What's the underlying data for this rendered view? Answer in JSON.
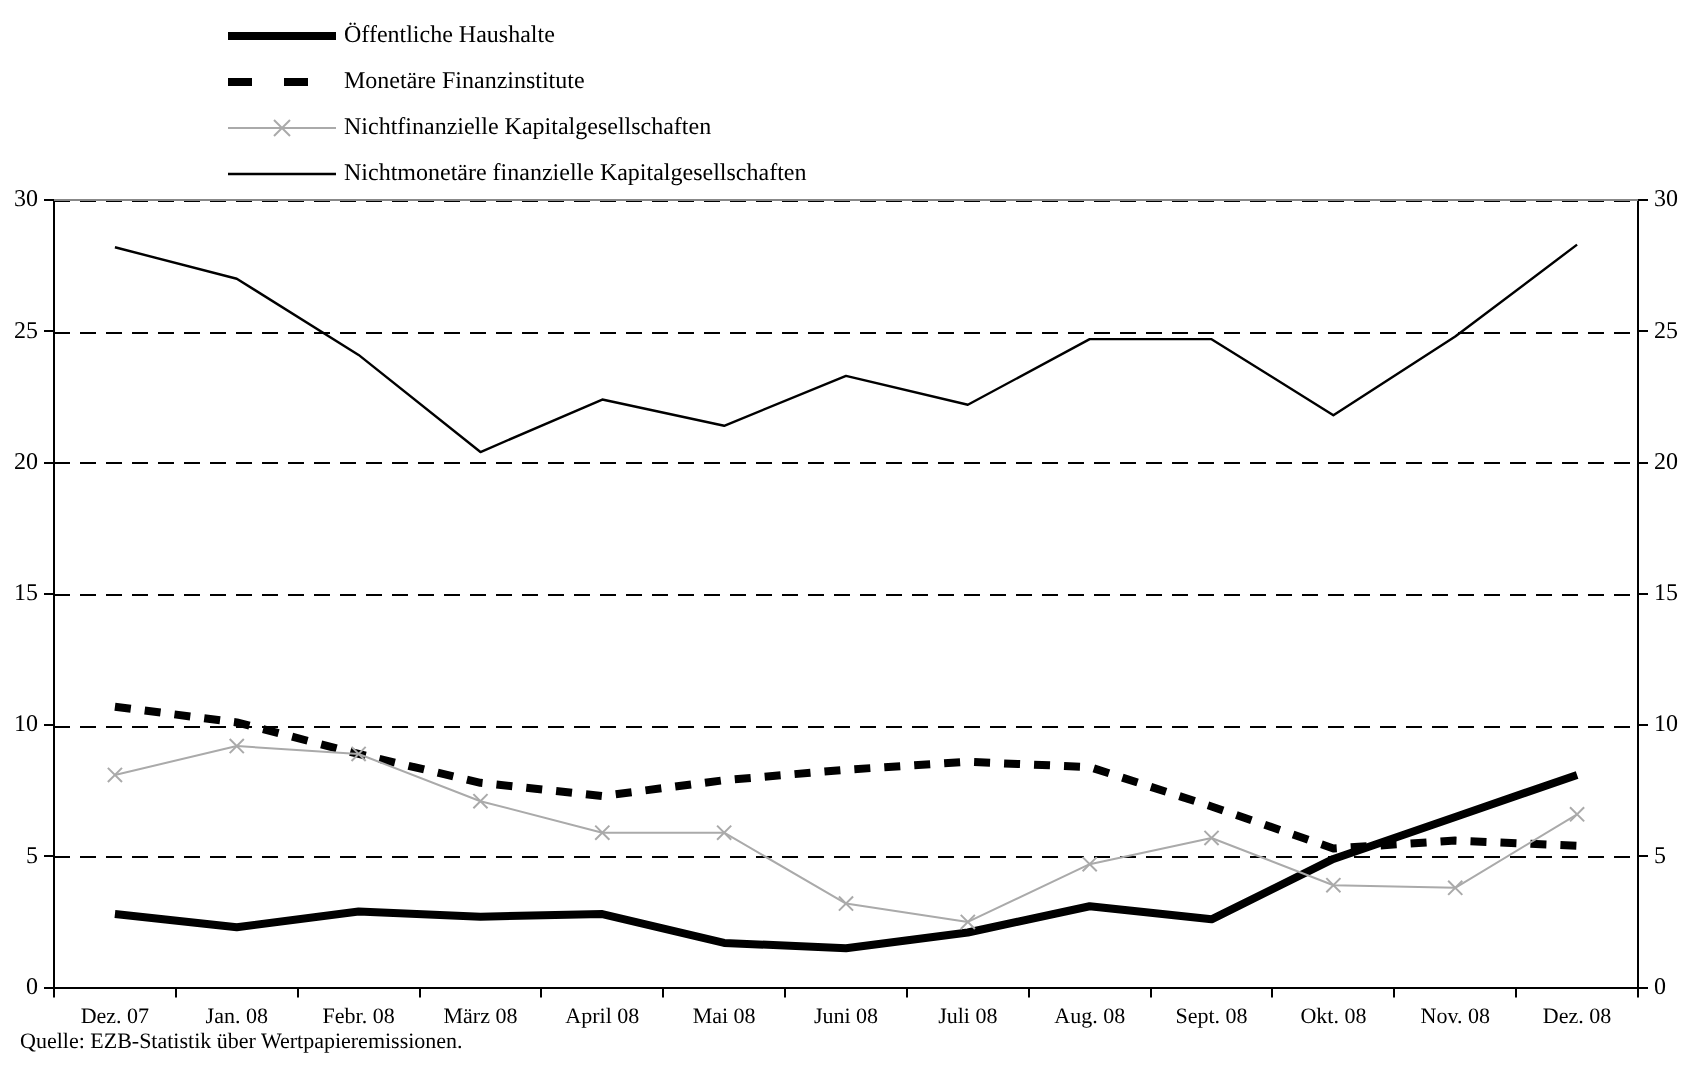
{
  "chart_data": {
    "type": "line",
    "categories": [
      "Dez. 07",
      "Jan. 08",
      "Febr. 08",
      "März 08",
      "April 08",
      "Mai 08",
      "Juni 08",
      "Juli 08",
      "Aug. 08",
      "Sept. 08",
      "Okt. 08",
      "Nov. 08",
      "Dez. 08"
    ],
    "series": [
      {
        "name": "Öffentliche Haushalte",
        "color": "#000000",
        "line_style": "solid",
        "marker": "none",
        "values": [
          2.8,
          2.3,
          2.9,
          2.7,
          2.8,
          1.7,
          1.5,
          2.1,
          3.1,
          2.6,
          4.9,
          6.5,
          8.1
        ]
      },
      {
        "name": "Monetäre Finanzinstitute",
        "color": "#000000",
        "line_style": "dashed",
        "marker": "none",
        "values": [
          10.7,
          10.1,
          8.9,
          7.8,
          7.3,
          7.9,
          8.3,
          8.6,
          8.4,
          6.9,
          5.3,
          5.6,
          5.4
        ]
      },
      {
        "name": "Nichtfinanzielle Kapitalgesellschaften",
        "color": "#aaaaaa",
        "line_style": "solid",
        "marker": "cross",
        "values": [
          8.1,
          9.2,
          8.9,
          7.1,
          5.9,
          5.9,
          3.2,
          2.5,
          4.7,
          5.7,
          3.9,
          3.8,
          6.6
        ]
      },
      {
        "name": "Nichtmonetäre finanzielle Kapitalgesellschaften",
        "color": "#000000",
        "line_style": "solid",
        "marker": "none",
        "values": [
          28.2,
          27.0,
          24.1,
          20.4,
          22.4,
          21.4,
          23.3,
          22.2,
          24.7,
          24.7,
          21.8,
          24.8,
          28.3
        ]
      }
    ],
    "ylim": [
      0,
      30
    ],
    "yticks": [
      0,
      5,
      10,
      15,
      20,
      25,
      30
    ],
    "y2lim": [
      0,
      30
    ],
    "y2ticks": [
      0,
      5,
      10,
      15,
      20,
      25,
      30
    ],
    "grid": "y",
    "legend": "top left",
    "annotations": [
      "Quelle: EZB-Statistik über Wertpapieremissionen."
    ]
  }
}
